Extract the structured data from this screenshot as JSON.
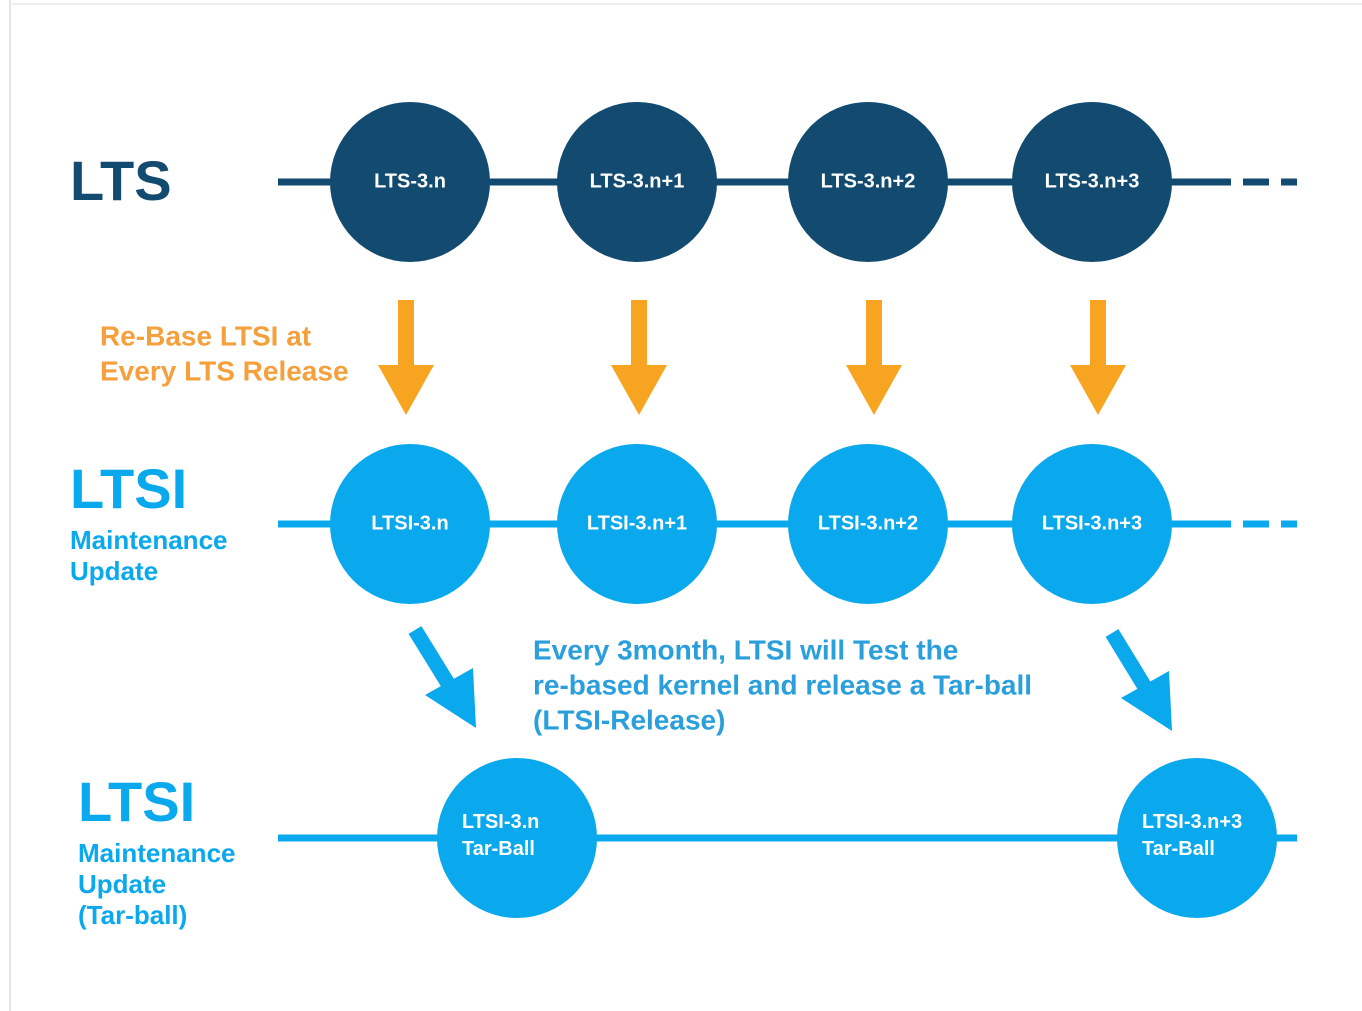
{
  "rows": [
    {
      "title": "LTS",
      "subtitle": [],
      "nodes": [
        [
          "LTS-3.n"
        ],
        [
          "LTS-3.n+1"
        ],
        [
          "LTS-3.n+2"
        ],
        [
          "LTS-3.n+3"
        ]
      ]
    },
    {
      "title": "LTSI",
      "subtitle": [
        "Maintenance",
        "Update"
      ],
      "nodes": [
        [
          "LTSI-3.n"
        ],
        [
          "LTSI-3.n+1"
        ],
        [
          "LTSI-3.n+2"
        ],
        [
          "LTSI-3.n+3"
        ]
      ]
    },
    {
      "title": "LTSI",
      "subtitle": [
        "Maintenance",
        "Update",
        "(Tar-ball)"
      ],
      "nodes": [
        [
          "LTSI-3.n",
          "Tar-Ball"
        ],
        [
          "LTSI-3.n+3",
          "Tar-Ball"
        ]
      ]
    }
  ],
  "annotations": {
    "rebase": [
      "Re-Base LTSI at",
      "Every LTS Release"
    ],
    "release": [
      "Every 3month, LTSI will Test the",
      "re-based kernel and release a Tar-ball",
      "(LTSI-Release)"
    ]
  }
}
